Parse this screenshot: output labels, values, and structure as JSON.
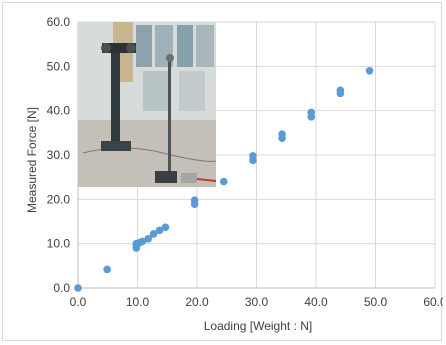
{
  "chart_data": {
    "type": "scatter",
    "title": "",
    "xlabel": "Loading [Weight : N]",
    "ylabel": "Measured Force [N]",
    "xlim": [
      0,
      60
    ],
    "ylim": [
      0,
      60
    ],
    "x_ticks": [
      "0.0",
      "10.0",
      "20.0",
      "30.0",
      "40.0",
      "50.0",
      "60.0"
    ],
    "y_ticks": [
      "0.0",
      "10.0",
      "20.0",
      "30.0",
      "40.0",
      "50.0",
      "60.0"
    ],
    "grid": true,
    "legend": "none",
    "marker_color": "#5b9bd5",
    "series": [
      {
        "x": [
          0.0,
          4.9,
          9.8,
          9.8,
          9.8,
          10.3,
          10.8,
          11.8,
          12.7,
          13.7,
          14.7,
          19.6,
          19.6,
          24.5,
          29.4,
          29.4,
          34.3,
          34.3,
          39.2,
          39.2,
          44.1,
          44.1,
          49.0
        ],
        "y": [
          0.0,
          4.2,
          9.0,
          9.6,
          10.0,
          10.2,
          10.5,
          11.1,
          12.2,
          13.0,
          13.7,
          18.9,
          19.8,
          24.0,
          28.8,
          29.8,
          33.8,
          34.7,
          38.6,
          39.6,
          43.9,
          44.6,
          49.0
        ]
      }
    ]
  },
  "inset_photo": {
    "description_icon": "sensor-test-rig-photo-icon"
  }
}
